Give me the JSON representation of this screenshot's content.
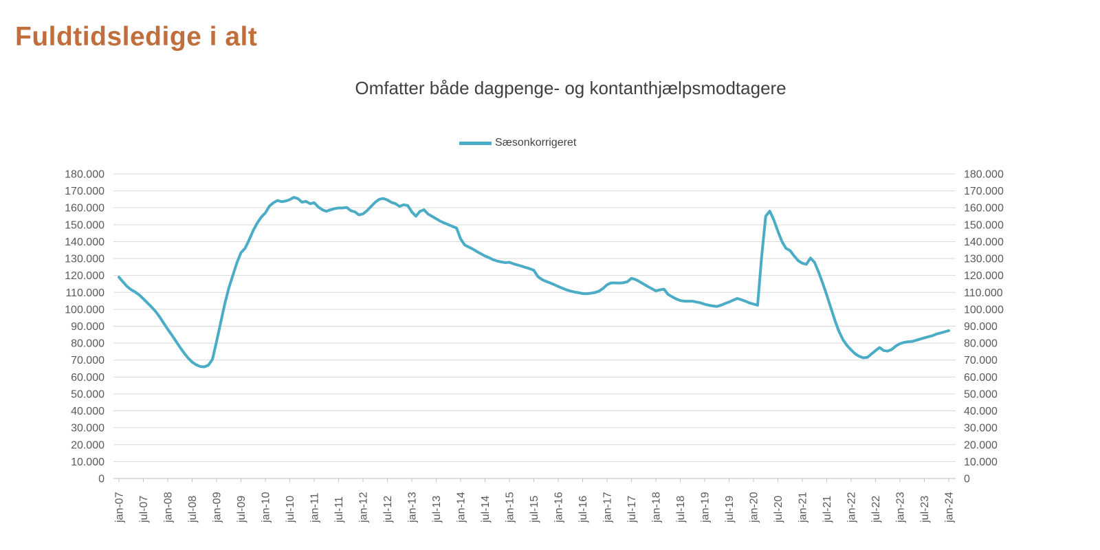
{
  "page_title": "Fuldtidsledige i alt",
  "colors": {
    "title": "#c06e3b",
    "series_line": "#4bacc6",
    "gridline": "#d9d9d9",
    "axis_line": "#bfbfbf",
    "axis_text": "#595959",
    "subtitle_text": "#404040"
  },
  "chart_data": {
    "type": "line",
    "title": "Omfatter både dagpenge- og kontanthjælpsmodtagere",
    "legend_position": "top-center",
    "grid": "horizontal-only",
    "axes": {
      "y_left": true,
      "y_right": true,
      "x_label_rotation_deg": -90
    },
    "ylim": [
      0,
      180000
    ],
    "y_ticks": [
      0,
      10000,
      20000,
      30000,
      40000,
      50000,
      60000,
      70000,
      80000,
      90000,
      100000,
      110000,
      120000,
      130000,
      140000,
      150000,
      160000,
      170000,
      180000
    ],
    "y_tick_labels": [
      "0",
      "10.000",
      "20.000",
      "30.000",
      "40.000",
      "50.000",
      "60.000",
      "70.000",
      "80.000",
      "90.000",
      "100.000",
      "110.000",
      "120.000",
      "130.000",
      "140.000",
      "150.000",
      "160.000",
      "170.000",
      "180.000"
    ],
    "x_monthly_start": "jan-07",
    "x_monthly_end": "jan-24",
    "months_per_tick": 6,
    "x_tick_labels": [
      "jan-07",
      "jul-07",
      "jan-08",
      "jul-08",
      "jan-09",
      "jul-09",
      "jan-10",
      "jul-10",
      "jan-11",
      "jul-11",
      "jan-12",
      "jul-12",
      "jan-13",
      "jul-13",
      "jan-14",
      "jul-14",
      "jan-15",
      "jul-15",
      "jan-16",
      "jul-16",
      "jan-17",
      "jul-17",
      "jan-18",
      "jul-18",
      "jan-19",
      "jul-19",
      "jan-20",
      "jul-20",
      "jan-21",
      "jul-21",
      "jan-22",
      "jul-22",
      "jan-23",
      "jul-23",
      "jan-24"
    ],
    "series": [
      {
        "name": "Sæsonkorrigeret",
        "color": "#4bacc6",
        "values": [
          119000,
          116200,
          113500,
          111600,
          110200,
          108500,
          106200,
          103800,
          101400,
          98800,
          95500,
          91800,
          88200,
          84800,
          81200,
          77600,
          74200,
          71200,
          68800,
          67200,
          66200,
          66000,
          67000,
          70500,
          81000,
          92000,
          103000,
          112500,
          120000,
          127500,
          133500,
          136000,
          141000,
          146500,
          151000,
          154500,
          157000,
          161000,
          163000,
          164300,
          163600,
          164000,
          164800,
          166200,
          165400,
          163300,
          163800,
          162400,
          163000,
          160500,
          158800,
          157900,
          158800,
          159500,
          159900,
          159900,
          160200,
          158300,
          157600,
          155800,
          156400,
          158300,
          160800,
          163300,
          165000,
          165500,
          164600,
          163200,
          162400,
          160800,
          161800,
          161300,
          157600,
          155000,
          157900,
          158800,
          156300,
          154900,
          153500,
          152100,
          151000,
          150000,
          149000,
          148000,
          141600,
          138000,
          136800,
          135600,
          134100,
          132800,
          131500,
          130500,
          129300,
          128500,
          128000,
          127600,
          127800,
          126900,
          126200,
          125500,
          124700,
          124000,
          123000,
          119300,
          117600,
          116500,
          115600,
          114600,
          113500,
          112500,
          111500,
          110800,
          110200,
          109800,
          109300,
          109200,
          109500,
          109900,
          110700,
          112300,
          114500,
          115600,
          115600,
          115500,
          115700,
          116300,
          118300,
          117600,
          116300,
          114900,
          113500,
          112200,
          110900,
          111500,
          111900,
          108800,
          107400,
          106100,
          105200,
          104800,
          104800,
          104800,
          104300,
          103800,
          103000,
          102400,
          102000,
          101700,
          102400,
          103400,
          104300,
          105400,
          106400,
          105700,
          104800,
          103800,
          103100,
          102400,
          131000,
          155000,
          158000,
          152800,
          146100,
          140000,
          136000,
          134700,
          131500,
          128700,
          127200,
          126600,
          130300,
          127800,
          122000,
          115500,
          108500,
          101000,
          93500,
          87000,
          82000,
          78600,
          76000,
          73700,
          72200,
          71300,
          71600,
          73600,
          75600,
          77400,
          75600,
          75300,
          76300,
          78300,
          79700,
          80400,
          80800,
          81000,
          81700,
          82400,
          83100,
          83800,
          84400,
          85400,
          86000,
          86700,
          87400
        ]
      }
    ]
  }
}
